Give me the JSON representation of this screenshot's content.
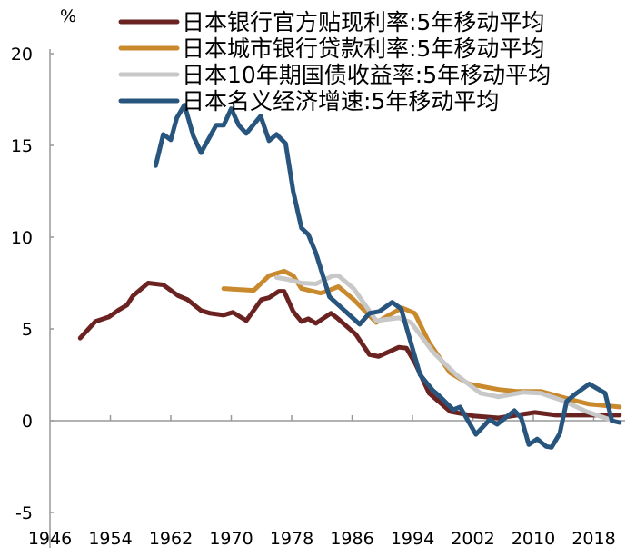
{
  "chart_data": {
    "type": "line",
    "title": "",
    "xlabel": "",
    "ylabel": "%",
    "xlim": [
      1946,
      2022
    ],
    "ylim": [
      -5,
      20
    ],
    "x_ticks": [
      "1946",
      "1954",
      "1962",
      "1970",
      "1978",
      "1986",
      "1994",
      "2002",
      "2010",
      "2018"
    ],
    "y_ticks": [
      "20",
      "15",
      "10",
      "5",
      "0",
      "-5"
    ],
    "grid": false,
    "legend_position": "top",
    "series": [
      {
        "name": "日本银行官方贴现利率:5年移动平均",
        "color": "#6b2321",
        "points": [
          [
            1950,
            4.5
          ],
          [
            1952,
            5.4
          ],
          [
            1953.8,
            5.65
          ],
          [
            1955,
            6.0
          ],
          [
            1956.2,
            6.3
          ],
          [
            1957,
            6.8
          ],
          [
            1959,
            7.5
          ],
          [
            1961,
            7.4
          ],
          [
            1963,
            6.8
          ],
          [
            1964.2,
            6.6
          ],
          [
            1966,
            6.0
          ],
          [
            1967.2,
            5.85
          ],
          [
            1969,
            5.75
          ],
          [
            1970.2,
            5.9
          ],
          [
            1972,
            5.45
          ],
          [
            1974,
            6.6
          ],
          [
            1975,
            6.7
          ],
          [
            1976.3,
            7.05
          ],
          [
            1977,
            7.05
          ],
          [
            1978.2,
            5.95
          ],
          [
            1979.3,
            5.4
          ],
          [
            1980.2,
            5.55
          ],
          [
            1981.2,
            5.3
          ],
          [
            1983.2,
            5.85
          ],
          [
            1984,
            5.6
          ],
          [
            1986.5,
            4.7
          ],
          [
            1988.3,
            3.6
          ],
          [
            1989.5,
            3.5
          ],
          [
            1992.2,
            4.0
          ],
          [
            1993.2,
            3.95
          ],
          [
            1994.4,
            3.1
          ],
          [
            1996.2,
            1.5
          ],
          [
            1999,
            0.5
          ],
          [
            2002.2,
            0.25
          ],
          [
            2005.4,
            0.15
          ],
          [
            2010.2,
            0.45
          ],
          [
            2013,
            0.3
          ],
          [
            2021.4,
            0.3
          ]
        ]
      },
      {
        "name": "日本城市银行贷款利率:5年移动平均",
        "color": "#c98a2e",
        "points": [
          [
            1969,
            7.2
          ],
          [
            1973,
            7.1
          ],
          [
            1975,
            7.9
          ],
          [
            1977,
            8.15
          ],
          [
            1978.2,
            7.9
          ],
          [
            1979.3,
            7.2
          ],
          [
            1981.8,
            6.95
          ],
          [
            1982.3,
            7.0
          ],
          [
            1984.2,
            7.3
          ],
          [
            1986.2,
            6.6
          ],
          [
            1989.2,
            5.35
          ],
          [
            1992.6,
            6.15
          ],
          [
            1994.3,
            5.85
          ],
          [
            1996.2,
            4.25
          ],
          [
            1999,
            2.6
          ],
          [
            2001.5,
            2.0
          ],
          [
            2005.4,
            1.7
          ],
          [
            2007.8,
            1.6
          ],
          [
            2011,
            1.6
          ],
          [
            2015,
            1.15
          ],
          [
            2017.4,
            0.9
          ],
          [
            2021.4,
            0.75
          ]
        ]
      },
      {
        "name": "日本10年期国债收益率:5年移动平均",
        "color": "#c8c8c8",
        "points": [
          [
            1976,
            7.8
          ],
          [
            1977.5,
            7.7
          ],
          [
            1979.3,
            7.5
          ],
          [
            1981.2,
            7.45
          ],
          [
            1983.5,
            7.9
          ],
          [
            1984.2,
            7.9
          ],
          [
            1986.2,
            7.2
          ],
          [
            1989.2,
            5.45
          ],
          [
            1992.2,
            5.6
          ],
          [
            1993.8,
            5.35
          ],
          [
            1996.7,
            3.75
          ],
          [
            1999.8,
            2.5
          ],
          [
            2003,
            1.5
          ],
          [
            2005.4,
            1.3
          ],
          [
            2008.7,
            1.55
          ],
          [
            2011,
            1.5
          ],
          [
            2014.2,
            1.05
          ],
          [
            2017,
            0.5
          ],
          [
            2020.2,
            0.05
          ]
        ]
      },
      {
        "name": "日本名义经济增速:5年移动平均",
        "color": "#27557e",
        "points": [
          [
            1960,
            13.9
          ],
          [
            1961,
            15.6
          ],
          [
            1962,
            15.3
          ],
          [
            1962.8,
            16.5
          ],
          [
            1963.8,
            17.2
          ],
          [
            1965,
            15.5
          ],
          [
            1966,
            14.6
          ],
          [
            1968,
            16.1
          ],
          [
            1969,
            16.1
          ],
          [
            1970,
            17.0
          ],
          [
            1971,
            16.1
          ],
          [
            1972,
            15.65
          ],
          [
            1973.9,
            16.6
          ],
          [
            1975,
            15.25
          ],
          [
            1976,
            15.6
          ],
          [
            1977.2,
            15.1
          ],
          [
            1978.2,
            12.5
          ],
          [
            1979.3,
            10.5
          ],
          [
            1980.2,
            10.15
          ],
          [
            1981.2,
            9.15
          ],
          [
            1983,
            6.75
          ],
          [
            1985,
            6.0
          ],
          [
            1987,
            5.25
          ],
          [
            1988.3,
            5.85
          ],
          [
            1989.6,
            5.95
          ],
          [
            1991.3,
            6.45
          ],
          [
            1992.5,
            6.1
          ],
          [
            1995,
            2.5
          ],
          [
            1996.7,
            1.65
          ],
          [
            1997.4,
            1.4
          ],
          [
            1999.4,
            0.6
          ],
          [
            2000.3,
            0.75
          ],
          [
            2002.4,
            -0.75
          ],
          [
            2004.2,
            0.05
          ],
          [
            2005.2,
            -0.2
          ],
          [
            2007.5,
            0.55
          ],
          [
            2008.4,
            0.15
          ],
          [
            2009.4,
            -1.3
          ],
          [
            2010.5,
            -1.0
          ],
          [
            2011.7,
            -1.4
          ],
          [
            2012.4,
            -1.45
          ],
          [
            2013.5,
            -0.7
          ],
          [
            2014.4,
            1.05
          ],
          [
            2015.4,
            1.4
          ],
          [
            2017.4,
            2.0
          ],
          [
            2019.5,
            1.5
          ],
          [
            2020.4,
            0.0
          ],
          [
            2021.4,
            -0.1
          ]
        ]
      }
    ]
  }
}
